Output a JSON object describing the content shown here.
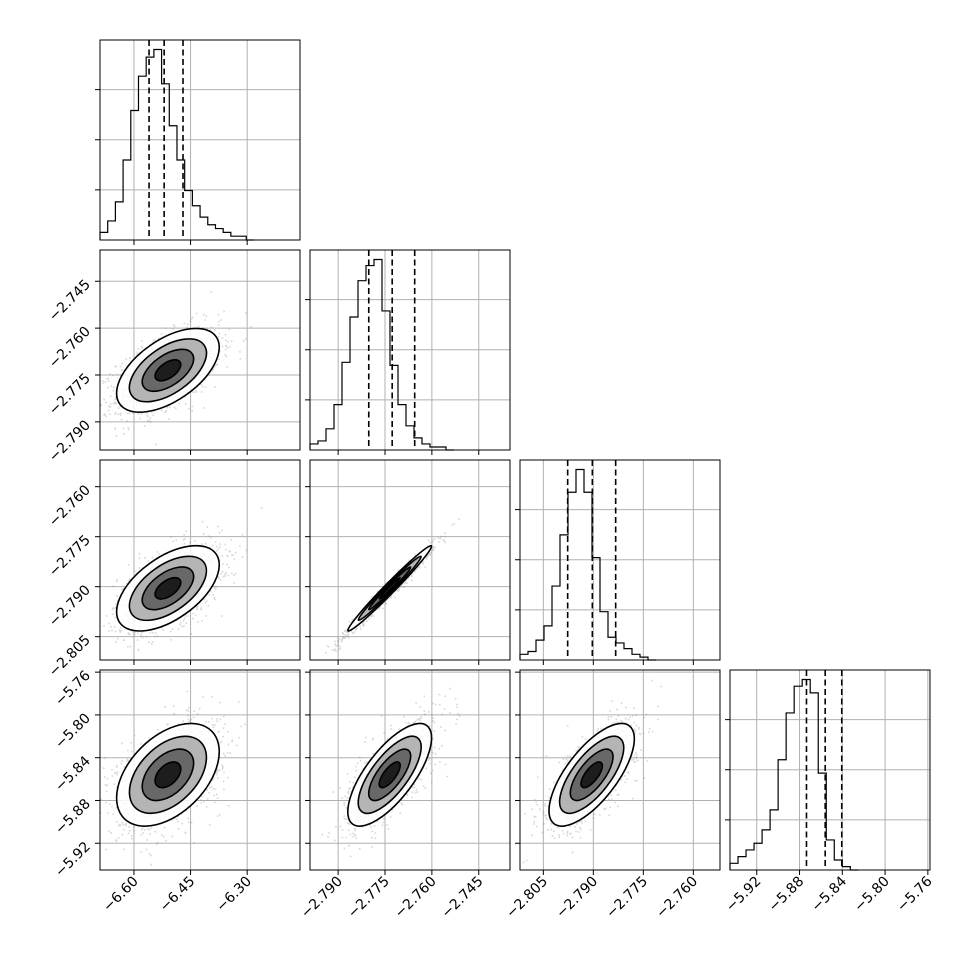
{
  "chart_data": {
    "type": "corner",
    "parameters": [
      {
        "ticks": [
          -6.6,
          -6.45,
          -6.3
        ],
        "tick_labels": [
          "−6.60",
          "−6.45",
          "−6.30"
        ],
        "range": [
          -6.69,
          -6.16
        ]
      },
      {
        "ticks": [
          -2.79,
          -2.775,
          -2.76,
          -2.745
        ],
        "tick_labels": [
          "−2.790",
          "−2.775",
          "−2.760",
          "−2.745"
        ],
        "range": [
          -2.799,
          -2.735
        ]
      },
      {
        "ticks": [
          -2.805,
          -2.79,
          -2.775,
          -2.76
        ],
        "tick_labels": [
          "−2.805",
          "−2.790",
          "−2.775",
          "−2.760"
        ],
        "range": [
          -2.812,
          -2.752
        ]
      },
      {
        "ticks": [
          -5.92,
          -5.88,
          -5.84,
          -5.8,
          -5.76
        ],
        "tick_labels": [
          "−5.92",
          "−5.88",
          "−5.84",
          "−5.80",
          "−5.76"
        ],
        "range": [
          -5.945,
          -5.758
        ]
      }
    ],
    "histograms": [
      {
        "bin_start": -6.69,
        "bin_width": 0.0204,
        "counts": [
          2,
          5,
          10,
          21,
          34,
          43,
          48,
          50,
          41,
          30,
          21,
          13,
          9,
          6,
          4,
          3,
          2,
          1,
          1,
          0
        ],
        "quantiles": [
          -6.56,
          -6.52,
          -6.47
        ]
      },
      {
        "bin_start": -2.799,
        "bin_width": 0.00256,
        "counts": [
          2,
          3,
          7,
          15,
          29,
          44,
          56,
          61,
          63,
          46,
          28,
          15,
          8,
          4,
          2,
          1,
          1,
          0
        ],
        "quantiles": [
          -2.7802,
          -2.7727,
          -2.7655
        ]
      },
      {
        "bin_start": -2.812,
        "bin_width": 0.0024,
        "counts": [
          2,
          3,
          7,
          12,
          26,
          44,
          59,
          67,
          59,
          36,
          17,
          8,
          6,
          4,
          2,
          1,
          0
        ],
        "quantiles": [
          -2.7977,
          -2.7903,
          -2.7833
        ]
      },
      {
        "bin_start": -5.945,
        "bin_width": 0.0075,
        "counts": [
          2,
          4,
          6,
          8,
          12,
          18,
          33,
          47,
          55,
          57,
          53,
          29,
          9,
          3,
          1,
          0
        ],
        "quantiles": [
          -5.8735,
          -5.856,
          -5.8405
        ]
      }
    ],
    "pairs": [
      {
        "x_param": 0,
        "y_param": 1,
        "mean": [
          -6.51,
          -2.7735
        ],
        "sd": [
          0.068,
          0.0067
        ],
        "corr": 0.55
      },
      {
        "x_param": 0,
        "y_param": 2,
        "mean": [
          -6.51,
          -2.7905
        ],
        "sd": [
          0.068,
          0.0064
        ],
        "corr": 0.55
      },
      {
        "x_param": 1,
        "y_param": 2,
        "mean": [
          -2.7735,
          -2.7905
        ],
        "sd": [
          0.0067,
          0.0064
        ],
        "corr": 0.985
      },
      {
        "x_param": 0,
        "y_param": 3,
        "mean": [
          -6.51,
          -5.856
        ],
        "sd": [
          0.068,
          0.024
        ],
        "corr": 0.45
      },
      {
        "x_param": 1,
        "y_param": 3,
        "mean": [
          -2.7735,
          -5.856
        ],
        "sd": [
          0.0067,
          0.024
        ],
        "corr": 0.72
      },
      {
        "x_param": 2,
        "y_param": 3,
        "mean": [
          -2.7905,
          -5.856
        ],
        "sd": [
          0.0064,
          0.024
        ],
        "corr": 0.7
      }
    ],
    "contour_levels_sigma": [
      0.5,
      1.0,
      1.5,
      2.0
    ],
    "grid": true,
    "colors": {
      "samples": "#7a7a7a",
      "lines": "#000000",
      "grid": "#b0b0b0"
    }
  }
}
